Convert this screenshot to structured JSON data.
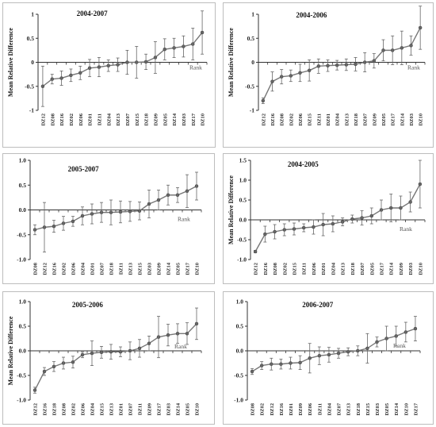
{
  "chart_data": [
    {
      "type": "line",
      "title": "2004-2007",
      "ylabel": "Mean Relative Difference",
      "axis_note": "Rank",
      "ylim": [
        -1,
        1
      ],
      "yticks": [
        "-1",
        "-0.5",
        "0",
        "0.5",
        "1"
      ],
      "categories": [
        "DZ12",
        "DZ08",
        "DZ16",
        "DZ02",
        "DZ06",
        "DZ01",
        "DZ11",
        "DZ04",
        "DZ13",
        "DZ07",
        "DZ15",
        "DZ18",
        "DZ09",
        "DZ05",
        "DZ14",
        "DZ03",
        "DZ17",
        "DZ10"
      ],
      "values": [
        -0.5,
        -0.35,
        -0.33,
        -0.27,
        -0.22,
        -0.12,
        -0.1,
        -0.07,
        -0.05,
        0.0,
        0.0,
        0.01,
        0.1,
        0.27,
        0.3,
        0.33,
        0.38,
        0.62
      ],
      "err": [
        0.42,
        0.1,
        0.15,
        0.13,
        0.14,
        0.18,
        0.2,
        0.12,
        0.14,
        0.25,
        0.33,
        0.16,
        0.33,
        0.22,
        0.2,
        0.22,
        0.33,
        0.45
      ],
      "grid": false
    },
    {
      "type": "line",
      "title": "2004-2006",
      "ylabel": "Mean Relative Difference",
      "axis_note": "Rank",
      "ylim": [
        -1,
        1
      ],
      "yticks": [
        "-1",
        "-0.5",
        "0",
        "0.5",
        "1"
      ],
      "categories": [
        "DZ12",
        "DZ16",
        "DZ08",
        "DZ02",
        "DZ06",
        "DZ15",
        "DZ11",
        "DZ01",
        "DZ04",
        "DZ13",
        "DZ18",
        "DZ07",
        "DZ09",
        "DZ05",
        "DZ17",
        "DZ14",
        "DZ03",
        "DZ10"
      ],
      "values": [
        -0.8,
        -0.4,
        -0.3,
        -0.28,
        -0.22,
        -0.17,
        -0.08,
        -0.07,
        -0.06,
        -0.05,
        -0.04,
        0.0,
        0.03,
        0.25,
        0.25,
        0.3,
        0.35,
        0.72
      ],
      "err": [
        0.06,
        0.2,
        0.15,
        0.12,
        0.18,
        0.22,
        0.15,
        0.12,
        0.1,
        0.12,
        0.14,
        0.2,
        0.15,
        0.22,
        0.3,
        0.35,
        0.2,
        0.45
      ],
      "grid": false
    },
    {
      "type": "line",
      "title": "2005-2007",
      "ylabel": "",
      "axis_note": "Rank",
      "ylim": [
        -1,
        1
      ],
      "yticks": [
        "-1.0",
        "-0.5",
        "0.0",
        "0.5",
        "1.0"
      ],
      "categories": [
        "DZ08",
        "DZ12",
        "DZ16",
        "DZ02",
        "DZ06",
        "DZ04",
        "DZ01",
        "DZ07",
        "DZ18",
        "DZ11",
        "DZ13",
        "DZ15",
        "DZ03",
        "DZ09",
        "DZ14",
        "DZ05",
        "DZ17",
        "DZ10"
      ],
      "values": [
        -0.4,
        -0.35,
        -0.33,
        -0.27,
        -0.23,
        -0.12,
        -0.08,
        -0.05,
        -0.05,
        -0.04,
        -0.03,
        -0.02,
        0.12,
        0.2,
        0.3,
        0.3,
        0.38,
        0.48
      ],
      "err": [
        0.1,
        0.5,
        0.12,
        0.14,
        0.1,
        0.18,
        0.2,
        0.2,
        0.25,
        0.22,
        0.2,
        0.18,
        0.28,
        0.2,
        0.2,
        0.15,
        0.33,
        0.28
      ],
      "grid": false
    },
    {
      "type": "line",
      "title": "2004-2005",
      "ylabel": "Mean Relative Difference",
      "axis_note": "Rank",
      "ylim": [
        -1,
        1.5
      ],
      "yticks": [
        "-1.0",
        "-0.5",
        "0.0",
        "0.5",
        "1.0",
        "1.5"
      ],
      "categories": [
        "DZ12",
        "DZ16",
        "DZ08",
        "DZ02",
        "DZ15",
        "DZ11",
        "DZ06",
        "DZ01",
        "DZ04",
        "DZ13",
        "DZ18",
        "DZ07",
        "DZ05",
        "DZ17",
        "DZ14",
        "DZ09",
        "DZ03",
        "DZ10"
      ],
      "values": [
        -0.8,
        -0.36,
        -0.3,
        -0.25,
        -0.23,
        -0.2,
        -0.18,
        -0.12,
        -0.1,
        -0.05,
        0.02,
        0.05,
        0.1,
        0.25,
        0.3,
        0.3,
        0.45,
        0.9
      ],
      "err": [
        0.03,
        0.2,
        0.18,
        0.15,
        0.15,
        0.1,
        0.18,
        0.28,
        0.2,
        0.1,
        0.1,
        0.18,
        0.2,
        0.25,
        0.35,
        0.3,
        0.25,
        0.6
      ],
      "grid": false
    },
    {
      "type": "line",
      "title": "2005-2006",
      "ylabel": "Mean Relative Difference",
      "axis_note": "Rank",
      "ylim": [
        -1,
        1
      ],
      "yticks": [
        "-1.0",
        "-0.5",
        "0.0",
        "0.5",
        "1.0"
      ],
      "categories": [
        "DZ12",
        "DZ16",
        "DZ18",
        "DZ08",
        "DZ02",
        "DZ06",
        "DZ04",
        "DZ15",
        "DZ13",
        "DZ01",
        "DZ07",
        "DZ11",
        "DZ09",
        "DZ17",
        "DZ03",
        "DZ14",
        "DZ05",
        "DZ10"
      ],
      "values": [
        -0.8,
        -0.42,
        -0.32,
        -0.25,
        -0.23,
        -0.08,
        -0.05,
        -0.03,
        -0.02,
        -0.02,
        0.0,
        0.05,
        0.15,
        0.28,
        0.32,
        0.35,
        0.35,
        0.55
      ],
      "err": [
        0.06,
        0.08,
        0.1,
        0.12,
        0.12,
        0.06,
        0.25,
        0.12,
        0.15,
        0.1,
        0.18,
        0.18,
        0.15,
        0.42,
        0.22,
        0.2,
        0.22,
        0.32
      ],
      "grid": false
    },
    {
      "type": "line",
      "title": "2006-2007",
      "ylabel": "",
      "axis_note": "Rank",
      "ylim": [
        -1,
        1
      ],
      "yticks": [
        "-1.0",
        "-0.5",
        "0.0",
        "0.5",
        "1.0"
      ],
      "categories": [
        "DZ08",
        "DZ02",
        "DZ12",
        "DZ16",
        "DZ01",
        "DZ09",
        "DZ06",
        "DZ11",
        "DZ04",
        "DZ07",
        "DZ13",
        "DZ18",
        "DZ15",
        "DZ03",
        "DZ05",
        "DZ14",
        "DZ10",
        "DZ17"
      ],
      "values": [
        -0.42,
        -0.3,
        -0.27,
        -0.27,
        -0.25,
        -0.24,
        -0.15,
        -0.1,
        -0.08,
        -0.05,
        -0.02,
        0.0,
        0.05,
        0.18,
        0.25,
        0.3,
        0.38,
        0.45
      ],
      "err": [
        0.06,
        0.08,
        0.12,
        0.1,
        0.12,
        0.14,
        0.3,
        0.18,
        0.15,
        0.1,
        0.08,
        0.1,
        0.3,
        0.1,
        0.25,
        0.2,
        0.2,
        0.25
      ],
      "grid": false
    }
  ]
}
